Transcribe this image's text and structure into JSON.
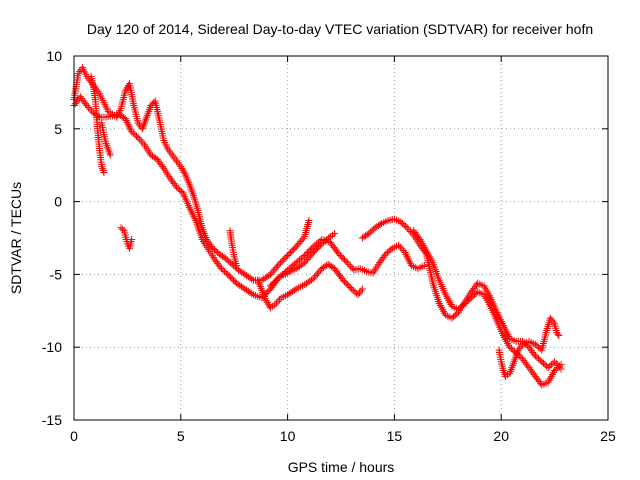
{
  "chart_data": {
    "type": "scatter",
    "title": "Day 120 of 2014, Sidereal Day-to-day VTEC variation (SDTVAR) for receiver hofn",
    "xlabel": "GPS time / hours",
    "ylabel": "SDTVAR / TECUs",
    "xlim": [
      0,
      25
    ],
    "ylim": [
      -15,
      10
    ],
    "xticks": [
      "0",
      "5",
      "10",
      "15",
      "20",
      "25"
    ],
    "yticks": [
      "10",
      "5",
      "0",
      "-5",
      "-10",
      "-15"
    ],
    "grid": true,
    "marker": "+",
    "series": [
      {
        "name": "SDTVAR",
        "color": "#ff0000",
        "tracks": [
          [
            [
              0.0,
              7.0
            ],
            [
              0.2,
              8.8
            ],
            [
              0.4,
              9.2
            ],
            [
              0.6,
              8.6
            ],
            [
              0.8,
              8.2
            ],
            [
              1.0,
              7.8
            ],
            [
              1.2,
              7.4
            ],
            [
              1.4,
              6.8
            ],
            [
              1.6,
              6.2
            ],
            [
              1.8,
              6.0
            ],
            [
              2.0,
              5.8
            ],
            [
              2.2,
              6.4
            ],
            [
              2.4,
              7.6
            ],
            [
              2.6,
              8.1
            ],
            [
              2.8,
              6.6
            ],
            [
              3.0,
              5.4
            ],
            [
              3.2,
              5.0
            ],
            [
              3.4,
              5.8
            ],
            [
              3.6,
              6.6
            ],
            [
              3.8,
              6.9
            ],
            [
              4.0,
              5.6
            ],
            [
              4.2,
              4.2
            ],
            [
              4.4,
              3.6
            ],
            [
              4.6,
              3.2
            ],
            [
              4.8,
              2.8
            ],
            [
              5.0,
              2.4
            ],
            [
              5.2,
              1.9
            ],
            [
              5.4,
              1.2
            ],
            [
              5.6,
              0.4
            ],
            [
              5.8,
              -0.6
            ],
            [
              6.0,
              -1.8
            ],
            [
              6.2,
              -2.6
            ],
            [
              6.5,
              -3.2
            ],
            [
              6.8,
              -3.6
            ],
            [
              7.1,
              -3.9
            ],
            [
              7.4,
              -4.3
            ],
            [
              7.7,
              -4.7
            ],
            [
              8.0,
              -5.0
            ],
            [
              8.4,
              -5.4
            ],
            [
              8.8,
              -5.4
            ],
            [
              9.2,
              -5.0
            ],
            [
              9.6,
              -4.3
            ],
            [
              10.0,
              -3.7
            ],
            [
              10.4,
              -3.1
            ],
            [
              10.8,
              -2.4
            ],
            [
              11.0,
              -1.3
            ]
          ],
          [
            [
              0.0,
              6.6
            ],
            [
              0.3,
              7.2
            ],
            [
              0.6,
              6.6
            ],
            [
              0.9,
              6.1
            ],
            [
              1.2,
              5.8
            ],
            [
              1.5,
              5.8
            ],
            [
              1.8,
              5.9
            ],
            [
              2.1,
              6.0
            ],
            [
              2.4,
              5.7
            ],
            [
              2.7,
              4.8
            ],
            [
              3.0,
              4.4
            ],
            [
              3.3,
              3.9
            ],
            [
              3.6,
              3.2
            ],
            [
              3.9,
              2.9
            ],
            [
              4.2,
              2.3
            ],
            [
              4.5,
              1.6
            ],
            [
              4.8,
              1.0
            ],
            [
              5.1,
              0.6
            ],
            [
              5.4,
              -0.4
            ],
            [
              5.7,
              -1.3
            ],
            [
              6.0,
              -2.6
            ],
            [
              6.3,
              -3.3
            ],
            [
              6.6,
              -4.0
            ],
            [
              6.9,
              -4.6
            ],
            [
              7.2,
              -5.0
            ],
            [
              7.6,
              -5.6
            ],
            [
              8.0,
              -6.0
            ],
            [
              8.4,
              -6.4
            ],
            [
              8.8,
              -6.6
            ],
            [
              9.2,
              -6.0
            ],
            [
              9.6,
              -5.2
            ],
            [
              10.0,
              -4.9
            ],
            [
              10.4,
              -4.6
            ],
            [
              10.8,
              -4.2
            ],
            [
              11.2,
              -3.5
            ],
            [
              11.6,
              -2.9
            ],
            [
              12.0,
              -2.4
            ],
            [
              12.2,
              -2.2
            ]
          ],
          [
            [
              0.8,
              8.6
            ],
            [
              0.9,
              8.0
            ],
            [
              1.0,
              7.0
            ],
            [
              1.1,
              5.0
            ],
            [
              1.2,
              3.5
            ],
            [
              1.3,
              2.4
            ],
            [
              1.4,
              2.0
            ]
          ],
          [
            [
              1.3,
              5.4
            ],
            [
              1.4,
              4.6
            ],
            [
              1.5,
              4.0
            ],
            [
              1.6,
              3.6
            ],
            [
              1.7,
              3.2
            ]
          ],
          [
            [
              2.2,
              -1.8
            ],
            [
              2.35,
              -2.0
            ],
            [
              2.5,
              -2.9
            ],
            [
              2.6,
              -3.2
            ],
            [
              2.7,
              -2.6
            ]
          ],
          [
            [
              7.3,
              -2.0
            ],
            [
              7.4,
              -3.0
            ],
            [
              7.5,
              -3.8
            ],
            [
              7.6,
              -4.4
            ]
          ],
          [
            [
              8.6,
              -5.4
            ],
            [
              8.8,
              -6.1
            ],
            [
              9.0,
              -6.8
            ],
            [
              9.2,
              -7.3
            ],
            [
              9.4,
              -7.1
            ],
            [
              9.7,
              -6.6
            ],
            [
              10.0,
              -6.4
            ],
            [
              10.4,
              -6.0
            ],
            [
              10.8,
              -5.7
            ],
            [
              11.2,
              -5.3
            ],
            [
              11.6,
              -4.6
            ],
            [
              11.9,
              -4.3
            ],
            [
              12.2,
              -4.6
            ],
            [
              12.6,
              -5.4
            ],
            [
              13.0,
              -6.0
            ],
            [
              13.3,
              -6.4
            ],
            [
              13.5,
              -6.0
            ]
          ],
          [
            [
              9.2,
              -5.8
            ],
            [
              9.6,
              -5.2
            ],
            [
              10.0,
              -4.7
            ],
            [
              10.4,
              -4.2
            ],
            [
              10.8,
              -3.7
            ],
            [
              11.2,
              -3.1
            ],
            [
              11.6,
              -2.6
            ],
            [
              12.0,
              -2.8
            ],
            [
              12.4,
              -3.6
            ],
            [
              12.8,
              -4.2
            ],
            [
              13.1,
              -4.7
            ],
            [
              13.4,
              -4.6
            ],
            [
              13.7,
              -4.8
            ],
            [
              14.0,
              -4.9
            ],
            [
              14.3,
              -4.2
            ],
            [
              14.6,
              -3.6
            ],
            [
              14.9,
              -3.2
            ],
            [
              15.2,
              -3.0
            ],
            [
              15.5,
              -3.5
            ],
            [
              15.8,
              -4.4
            ],
            [
              16.1,
              -4.6
            ],
            [
              16.4,
              -4.4
            ]
          ],
          [
            [
              13.5,
              -2.5
            ],
            [
              13.8,
              -2.2
            ],
            [
              14.1,
              -1.8
            ],
            [
              14.4,
              -1.5
            ],
            [
              14.7,
              -1.3
            ],
            [
              15.0,
              -1.2
            ],
            [
              15.3,
              -1.4
            ],
            [
              15.6,
              -1.8
            ],
            [
              15.9,
              -2.3
            ],
            [
              16.2,
              -3.0
            ],
            [
              16.5,
              -3.6
            ],
            [
              16.8,
              -5.6
            ],
            [
              17.1,
              -7.0
            ],
            [
              17.4,
              -7.8
            ],
            [
              17.7,
              -8.0
            ],
            [
              18.0,
              -7.6
            ],
            [
              18.3,
              -6.9
            ],
            [
              18.6,
              -6.2
            ],
            [
              18.9,
              -5.6
            ],
            [
              19.2,
              -5.8
            ],
            [
              19.5,
              -6.6
            ],
            [
              19.8,
              -7.6
            ],
            [
              20.1,
              -8.5
            ],
            [
              20.4,
              -9.4
            ],
            [
              20.7,
              -9.6
            ],
            [
              21.0,
              -9.6
            ],
            [
              21.3,
              -10.0
            ],
            [
              21.6,
              -10.6
            ],
            [
              21.9,
              -11.0
            ],
            [
              22.2,
              -11.4
            ],
            [
              22.5,
              -11.0
            ],
            [
              22.8,
              -11.5
            ]
          ],
          [
            [
              15.9,
              -2.0
            ],
            [
              16.2,
              -2.6
            ],
            [
              16.5,
              -3.4
            ],
            [
              16.8,
              -4.2
            ],
            [
              17.1,
              -5.4
            ],
            [
              17.4,
              -6.4
            ],
            [
              17.7,
              -7.2
            ],
            [
              18.0,
              -7.4
            ],
            [
              18.3,
              -7.0
            ],
            [
              18.6,
              -6.6
            ],
            [
              18.9,
              -6.2
            ],
            [
              19.2,
              -6.4
            ],
            [
              19.5,
              -7.2
            ],
            [
              19.8,
              -8.2
            ],
            [
              20.1,
              -9.2
            ],
            [
              20.4,
              -10.0
            ],
            [
              20.7,
              -10.4
            ],
            [
              21.0,
              -10.8
            ],
            [
              21.3,
              -11.4
            ],
            [
              21.6,
              -12.0
            ],
            [
              21.9,
              -12.6
            ],
            [
              22.2,
              -12.4
            ],
            [
              22.5,
              -11.6
            ],
            [
              22.8,
              -11.2
            ]
          ],
          [
            [
              19.9,
              -10.2
            ],
            [
              20.0,
              -11.0
            ],
            [
              20.1,
              -11.6
            ],
            [
              20.2,
              -12.0
            ],
            [
              20.4,
              -11.8
            ],
            [
              20.6,
              -11.0
            ],
            [
              20.8,
              -10.2
            ],
            [
              21.0,
              -9.8
            ],
            [
              21.3,
              -9.6
            ],
            [
              21.6,
              -9.8
            ],
            [
              21.9,
              -10.2
            ],
            [
              22.1,
              -9.0
            ],
            [
              22.3,
              -8.0
            ],
            [
              22.5,
              -8.4
            ],
            [
              22.6,
              -9.0
            ],
            [
              22.7,
              -9.2
            ]
          ]
        ]
      }
    ]
  }
}
